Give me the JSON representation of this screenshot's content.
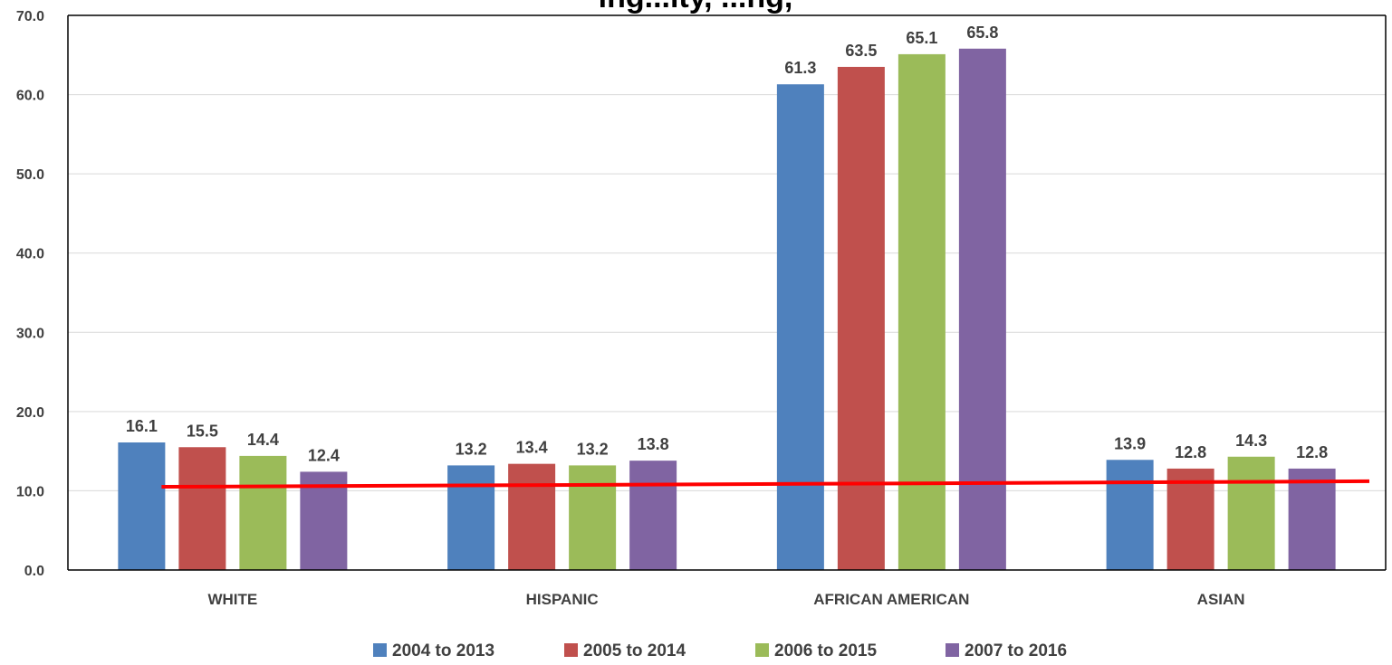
{
  "chart_data": {
    "type": "bar",
    "title": "ing...ity, ...ng,",
    "categories": [
      "WHITE",
      "HISPANIC",
      "AFRICAN AMERICAN",
      "ASIAN"
    ],
    "series": [
      {
        "name": "2004 to 2013",
        "color": "#4F81BD",
        "values": [
          16.1,
          13.2,
          61.3,
          13.9
        ]
      },
      {
        "name": "2005 to 2014",
        "color": "#C0504D",
        "values": [
          15.5,
          13.4,
          63.5,
          12.8
        ]
      },
      {
        "name": "2006 to 2015",
        "color": "#9BBB59",
        "values": [
          14.4,
          13.2,
          65.1,
          14.3
        ]
      },
      {
        "name": "2007 to 2016",
        "color": "#8064A2",
        "values": [
          12.4,
          13.8,
          65.8,
          12.8
        ]
      }
    ],
    "ylim": [
      0,
      70
    ],
    "yticks": [
      "0.0",
      "10.0",
      "20.0",
      "30.0",
      "40.0",
      "50.0",
      "60.0",
      "70.0"
    ],
    "grid": true,
    "legend_position": "bottom",
    "trendline": {
      "color": "#FF0000",
      "start_value": 10.5,
      "end_value": 11.2
    }
  }
}
